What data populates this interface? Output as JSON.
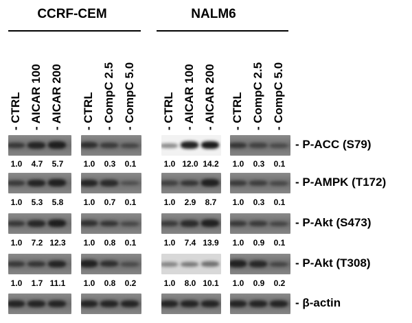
{
  "groups": [
    {
      "title": "CCRF-CEM"
    },
    {
      "title": "NALM6"
    }
  ],
  "panels": [
    {
      "lanes": [
        "- CTRL",
        "- AICAR 100",
        "- AICAR 200"
      ]
    },
    {
      "lanes": [
        "- CTRL",
        "- CompC 2.5",
        "- CompC 5.0"
      ]
    },
    {
      "lanes": [
        "- CTRL",
        "- AICAR 100",
        "- AICAR 200"
      ]
    },
    {
      "lanes": [
        "- CTRL",
        "- CompC 2.5",
        "- CompC 5.0"
      ]
    }
  ],
  "rows": [
    {
      "marker": "- P-ACC (S79)",
      "values": [
        [
          "1.0",
          "4.7",
          "5.7"
        ],
        [
          "1.0",
          "0.3",
          "0.1"
        ],
        [
          "1.0",
          "12.0",
          "14.2"
        ],
        [
          "1.0",
          "0.3",
          "0.1"
        ]
      ]
    },
    {
      "marker": "- P-AMPK (T172)",
      "values": [
        [
          "1.0",
          "5.3",
          "5.8"
        ],
        [
          "1.0",
          "0.7",
          "0.1"
        ],
        [
          "1.0",
          "2.9",
          "8.7"
        ],
        [
          "1.0",
          "0.3",
          "0.1"
        ]
      ]
    },
    {
      "marker": "- P-Akt (S473)",
      "values": [
        [
          "1.0",
          "7.2",
          "12.3"
        ],
        [
          "1.0",
          "0.8",
          "0.1"
        ],
        [
          "1.0",
          "7.4",
          "13.9"
        ],
        [
          "1.0",
          "0.9",
          "0.1"
        ]
      ]
    },
    {
      "marker": "- P-Akt (T308)",
      "values": [
        [
          "1.0",
          "1.7",
          "11.1"
        ],
        [
          "1.0",
          "0.8",
          "0.2"
        ],
        [
          "1.0",
          "8.0",
          "10.1"
        ],
        [
          "1.0",
          "0.9",
          "0.2"
        ]
      ]
    },
    {
      "marker": "- β-actin",
      "values": null
    }
  ]
}
